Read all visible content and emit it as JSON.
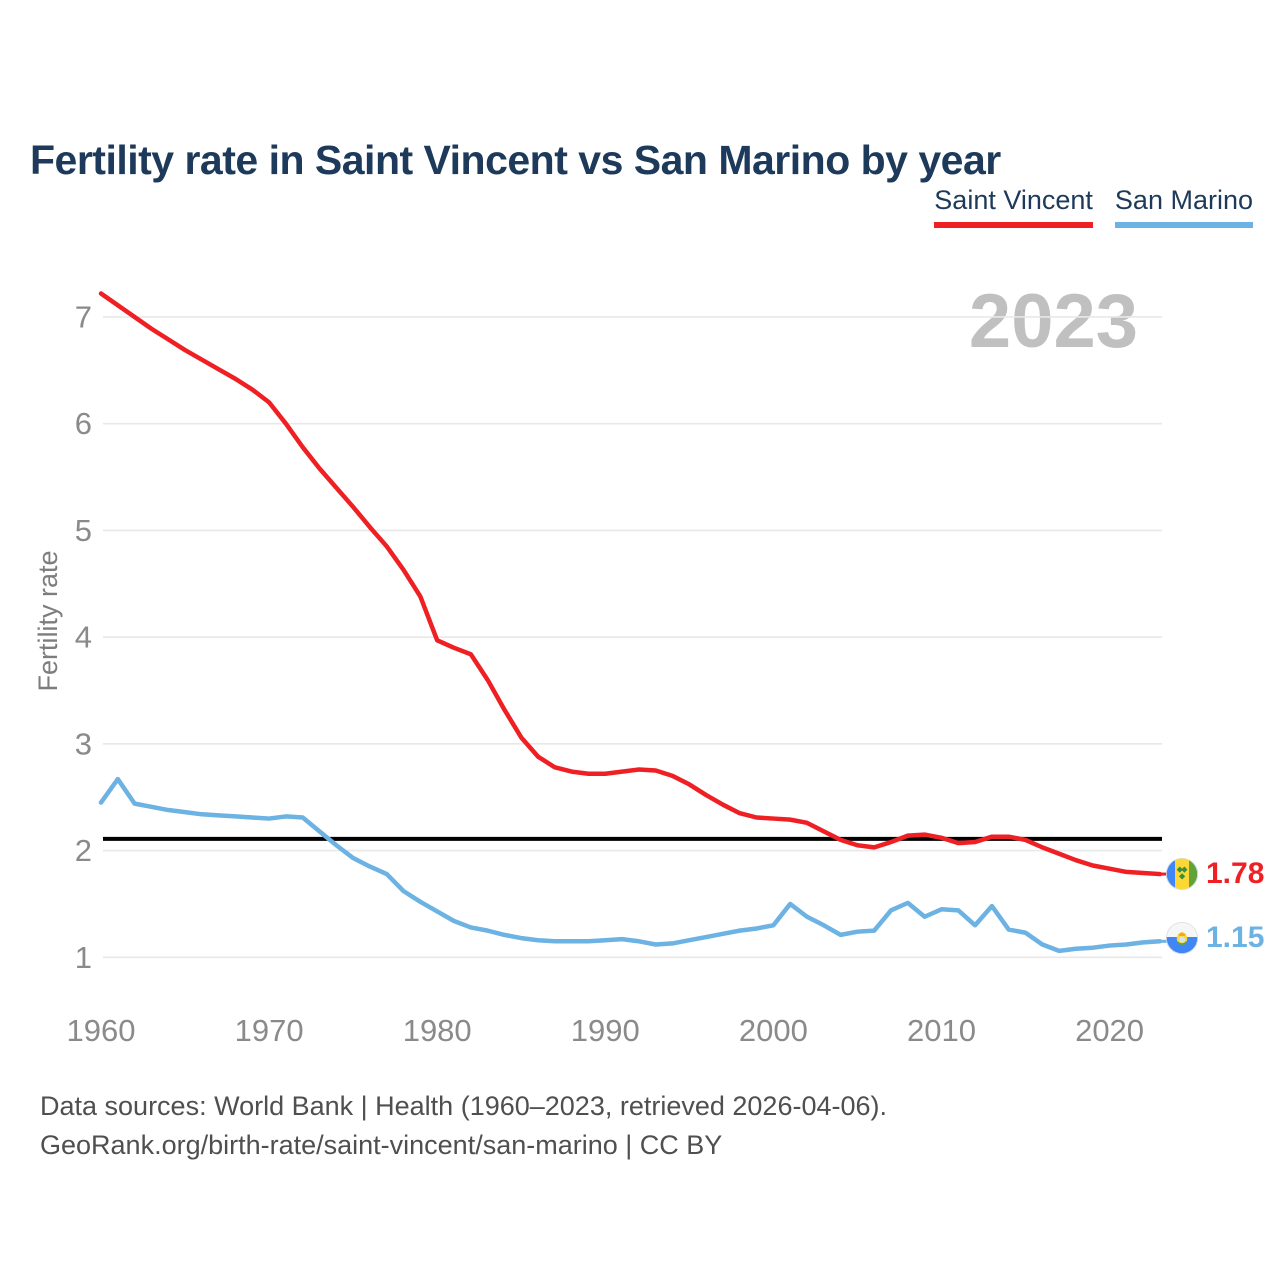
{
  "title": "Fertility rate in Saint Vincent vs San Marino by year",
  "legend": {
    "items": [
      {
        "label": "Saint Vincent",
        "color": "#ee2024"
      },
      {
        "label": "San Marino",
        "color": "#6cb2e2"
      }
    ]
  },
  "watermark": "2023",
  "axes": {
    "y_label": "Fertility rate"
  },
  "end_labels": [
    {
      "series": "Saint Vincent",
      "flag": "saint-vincent-flag",
      "value": "1.78",
      "color": "#ee2024"
    },
    {
      "series": "San Marino",
      "flag": "san-marino-flag",
      "value": "1.15",
      "color": "#6cb2e2"
    }
  ],
  "footer": {
    "line1": "Data sources: World Bank | Health (1960–2023, retrieved 2026-04-06).",
    "line2": "GeoRank.org/birth-rate/saint-vincent/san-marino | CC BY"
  },
  "chart_data": {
    "type": "line",
    "title": "Fertility rate in Saint Vincent vs San Marino by year",
    "xlabel": "",
    "ylabel": "Fertility rate",
    "grid": "horizontal",
    "legend_position": "top-right",
    "xlim": [
      1960,
      2023
    ],
    "ylim": [
      0.55,
      7.5
    ],
    "xticks": [
      1960,
      1970,
      1980,
      1990,
      2000,
      2010,
      2020
    ],
    "yticks": [
      1,
      2,
      3,
      4,
      5,
      6,
      7
    ],
    "reference_line": {
      "value": 2.11,
      "color": "#000000"
    },
    "x": [
      1960,
      1961,
      1962,
      1963,
      1964,
      1965,
      1966,
      1967,
      1968,
      1969,
      1970,
      1971,
      1972,
      1973,
      1974,
      1975,
      1976,
      1977,
      1978,
      1979,
      1980,
      1981,
      1982,
      1983,
      1984,
      1985,
      1986,
      1987,
      1988,
      1989,
      1990,
      1991,
      1992,
      1993,
      1994,
      1995,
      1996,
      1997,
      1998,
      1999,
      2000,
      2001,
      2002,
      2003,
      2004,
      2005,
      2006,
      2007,
      2008,
      2009,
      2010,
      2011,
      2012,
      2013,
      2014,
      2015,
      2016,
      2017,
      2018,
      2019,
      2020,
      2021,
      2022,
      2023
    ],
    "series": [
      {
        "name": "Saint Vincent",
        "color": "#ee2024",
        "values": [
          7.22,
          7.11,
          7.0,
          6.89,
          6.79,
          6.69,
          6.6,
          6.51,
          6.42,
          6.32,
          6.2,
          6.0,
          5.78,
          5.58,
          5.4,
          5.22,
          5.03,
          4.85,
          4.63,
          4.38,
          3.97,
          3.9,
          3.84,
          3.6,
          3.32,
          3.06,
          2.88,
          2.78,
          2.74,
          2.72,
          2.72,
          2.74,
          2.76,
          2.75,
          2.7,
          2.62,
          2.52,
          2.43,
          2.35,
          2.31,
          2.3,
          2.29,
          2.26,
          2.18,
          2.1,
          2.05,
          2.03,
          2.08,
          2.14,
          2.15,
          2.12,
          2.07,
          2.08,
          2.13,
          2.13,
          2.1,
          2.03,
          1.97,
          1.91,
          1.86,
          1.83,
          1.8,
          1.79,
          1.78
        ]
      },
      {
        "name": "San Marino",
        "color": "#6cb2e2",
        "values": [
          2.45,
          2.67,
          2.44,
          2.41,
          2.38,
          2.36,
          2.34,
          2.33,
          2.32,
          2.31,
          2.3,
          2.32,
          2.31,
          2.18,
          2.05,
          1.93,
          1.85,
          1.78,
          1.62,
          1.52,
          1.43,
          1.34,
          1.28,
          1.25,
          1.21,
          1.18,
          1.16,
          1.15,
          1.15,
          1.15,
          1.16,
          1.17,
          1.15,
          1.12,
          1.13,
          1.16,
          1.19,
          1.22,
          1.25,
          1.27,
          1.3,
          1.5,
          1.38,
          1.3,
          1.21,
          1.24,
          1.25,
          1.44,
          1.51,
          1.38,
          1.45,
          1.44,
          1.3,
          1.48,
          1.26,
          1.23,
          1.12,
          1.06,
          1.08,
          1.09,
          1.11,
          1.12,
          1.14,
          1.15
        ]
      }
    ]
  }
}
